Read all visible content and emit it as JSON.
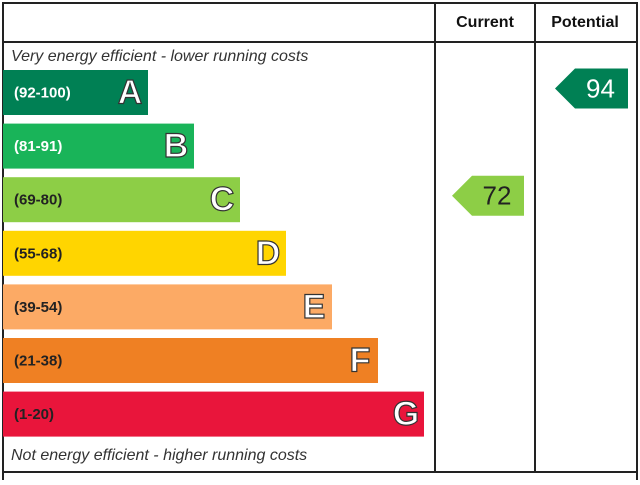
{
  "header": {
    "current": "Current",
    "potential": "Potential"
  },
  "top_note": "Very energy efficient - lower running costs",
  "bottom_note": "Not energy efficient - higher running costs",
  "bands": [
    {
      "range": "(92-100)",
      "letter": "A",
      "color": "#008054",
      "text_color": "#ffffff"
    },
    {
      "range": "(81-91)",
      "letter": "B",
      "color": "#19b459",
      "text_color": "#ffffff"
    },
    {
      "range": "(69-80)",
      "letter": "C",
      "color": "#8dce46",
      "text_color": "#222222"
    },
    {
      "range": "(55-68)",
      "letter": "D",
      "color": "#ffd500",
      "text_color": "#222222"
    },
    {
      "range": "(39-54)",
      "letter": "E",
      "color": "#fcaa65",
      "text_color": "#222222"
    },
    {
      "range": "(21-38)",
      "letter": "F",
      "color": "#ef8023",
      "text_color": "#222222"
    },
    {
      "range": "(1-20)",
      "letter": "G",
      "color": "#e9153b",
      "text_color": "#222222"
    }
  ],
  "current": {
    "value": 72
  },
  "potential": {
    "value": 94
  }
}
